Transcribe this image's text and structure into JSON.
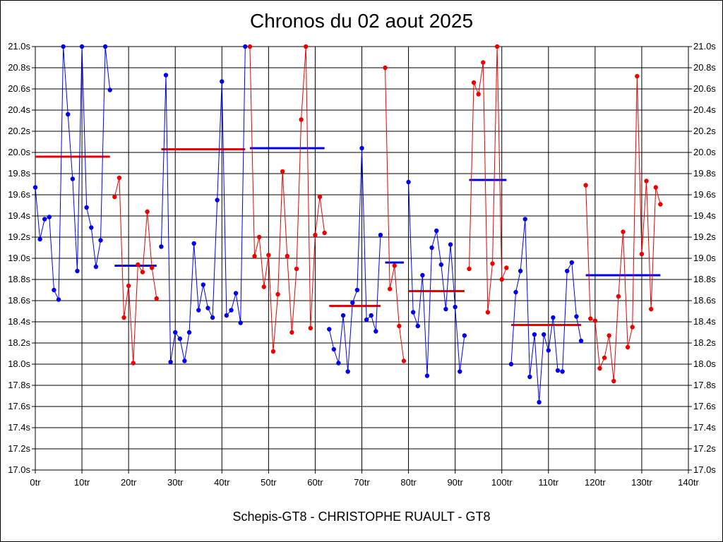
{
  "chart_data": {
    "type": "line",
    "title": "Chronos du 02 aout 2025",
    "subtitle": "Schepis-GT8 - CHRISTOPHE RUAULT - GT8",
    "xlim": [
      0,
      140
    ],
    "ylim": [
      17.0,
      21.0
    ],
    "x_ticks": [
      0,
      10,
      20,
      30,
      40,
      50,
      60,
      70,
      80,
      90,
      100,
      110,
      120,
      130,
      140
    ],
    "x_tick_labels": [
      "0tr",
      "10tr",
      "20tr",
      "30tr",
      "40tr",
      "50tr",
      "60tr",
      "70tr",
      "80tr",
      "90tr",
      "100tr",
      "110tr",
      "120tr",
      "130tr",
      "140tr"
    ],
    "y_ticks": [
      17.0,
      17.2,
      17.4,
      17.6,
      17.8,
      18.0,
      18.2,
      18.4,
      18.6,
      18.8,
      19.0,
      19.2,
      19.4,
      19.6,
      19.8,
      20.0,
      20.2,
      20.4,
      20.6,
      20.8,
      21.0
    ],
    "y_tick_labels": [
      "17.0s",
      "17.2s",
      "17.4s",
      "17.6s",
      "17.8s",
      "18.0s",
      "18.2s",
      "18.4s",
      "18.6s",
      "18.8s",
      "19.0s",
      "19.2s",
      "19.4s",
      "19.6s",
      "19.8s",
      "20.0s",
      "20.2s",
      "20.4s",
      "20.6s",
      "20.8s",
      "21.0s"
    ],
    "grid": true,
    "colors": {
      "blue": "#0000ee",
      "red": "#ee0000"
    },
    "series": [
      {
        "color": "blue",
        "x": [
          0,
          1,
          2,
          3,
          4,
          5,
          6,
          7,
          8,
          9,
          10,
          11,
          12,
          13,
          14,
          15,
          16
        ],
        "y": [
          19.67,
          19.18,
          19.37,
          19.39,
          18.7,
          18.61,
          21.0,
          20.36,
          19.75,
          18.88,
          21.0,
          19.48,
          19.29,
          18.92,
          19.17,
          21.0,
          20.59
        ]
      },
      {
        "color": "red",
        "x": [
          17,
          18,
          19,
          20,
          21,
          22,
          23,
          24,
          25,
          26
        ],
        "y": [
          19.58,
          19.76,
          18.44,
          18.74,
          18.01,
          18.94,
          18.87,
          19.44,
          18.91,
          18.62
        ]
      },
      {
        "color": "blue",
        "x": [
          27,
          28,
          29,
          30,
          31,
          32,
          33,
          34,
          35,
          36,
          37,
          38,
          39,
          40,
          41,
          42,
          43,
          44,
          45
        ],
        "y": [
          19.11,
          20.73,
          18.02,
          18.3,
          18.24,
          18.03,
          18.3,
          19.14,
          18.51,
          18.75,
          18.53,
          18.44,
          19.55,
          20.67,
          18.46,
          18.51,
          18.67,
          18.39,
          21.0
        ]
      },
      {
        "color": "red",
        "x": [
          46,
          47,
          48,
          49,
          50,
          51,
          52,
          53,
          54,
          55,
          56,
          57,
          58,
          59,
          60,
          61,
          62
        ],
        "y": [
          21.0,
          19.02,
          19.2,
          18.73,
          19.03,
          18.12,
          18.66,
          19.82,
          19.02,
          18.3,
          18.9,
          20.31,
          21.0,
          18.34,
          19.22,
          19.58,
          19.24
        ]
      },
      {
        "color": "blue",
        "x": [
          63,
          64,
          65,
          66,
          67,
          68,
          69,
          70,
          71,
          72,
          73,
          74
        ],
        "y": [
          18.33,
          18.14,
          18.01,
          18.46,
          17.93,
          18.58,
          18.7,
          20.04,
          18.42,
          18.46,
          18.31,
          19.22
        ]
      },
      {
        "color": "red",
        "x": [
          75,
          76,
          77,
          78,
          79
        ],
        "y": [
          20.8,
          18.71,
          18.93,
          18.36,
          18.03
        ]
      },
      {
        "color": "blue",
        "x": [
          80,
          81,
          82,
          83,
          84,
          85,
          86,
          87,
          88,
          89,
          90,
          91,
          92
        ],
        "y": [
          19.72,
          18.49,
          18.36,
          18.84,
          17.89,
          19.1,
          19.26,
          18.94,
          18.52,
          19.13,
          18.54,
          17.93,
          18.27
        ]
      },
      {
        "color": "red",
        "x": [
          93,
          94,
          95,
          96,
          97,
          98,
          99,
          100,
          101
        ],
        "y": [
          18.9,
          20.66,
          20.55,
          20.85,
          18.49,
          18.95,
          21.0,
          18.8,
          18.91
        ]
      },
      {
        "color": "blue",
        "x": [
          102,
          103,
          104,
          105,
          106,
          107,
          108,
          109,
          110,
          111,
          112,
          113,
          114,
          115,
          116,
          117
        ],
        "y": [
          18.0,
          18.68,
          18.88,
          19.37,
          17.88,
          18.28,
          17.64,
          18.28,
          18.13,
          18.44,
          17.94,
          17.93,
          18.88,
          18.96,
          18.45,
          18.22
        ]
      },
      {
        "color": "red",
        "x": [
          118,
          119,
          120,
          121,
          122,
          123,
          124,
          125,
          126,
          127,
          128,
          129,
          130,
          131,
          132,
          133,
          134
        ],
        "y": [
          19.69,
          18.43,
          18.41,
          17.96,
          18.06,
          18.27,
          17.84,
          18.64,
          19.25,
          18.16,
          18.35,
          20.72,
          19.04,
          19.73,
          18.52,
          19.67,
          19.51
        ]
      }
    ],
    "averages": [
      {
        "color": "red",
        "x0": 0,
        "x1": 16,
        "y": 19.96
      },
      {
        "color": "blue",
        "x0": 17,
        "x1": 26,
        "y": 18.93
      },
      {
        "color": "red",
        "x0": 27,
        "x1": 45,
        "y": 20.03
      },
      {
        "color": "blue",
        "x0": 46,
        "x1": 62,
        "y": 20.04
      },
      {
        "color": "red",
        "x0": 63,
        "x1": 74,
        "y": 18.55
      },
      {
        "color": "blue",
        "x0": 75,
        "x1": 79,
        "y": 18.96
      },
      {
        "color": "red",
        "x0": 80,
        "x1": 92,
        "y": 18.69
      },
      {
        "color": "blue",
        "x0": 93,
        "x1": 101,
        "y": 19.74
      },
      {
        "color": "red",
        "x0": 102,
        "x1": 117,
        "y": 18.37
      },
      {
        "color": "blue",
        "x0": 118,
        "x1": 134,
        "y": 18.84
      }
    ]
  }
}
